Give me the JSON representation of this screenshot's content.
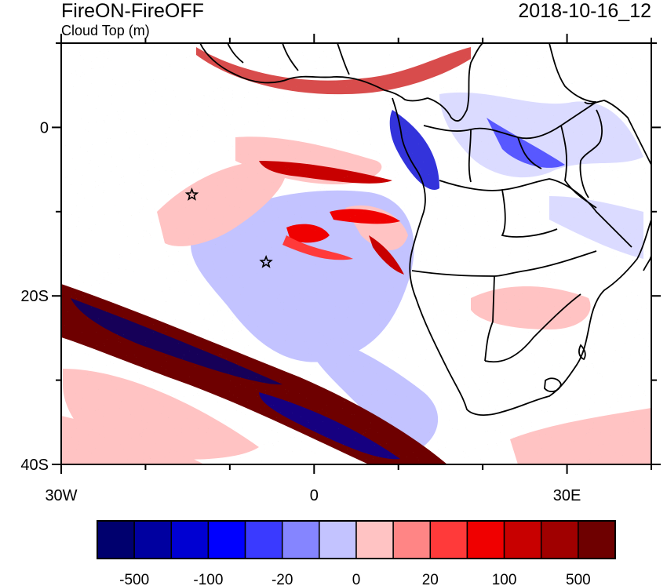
{
  "title": "FireON-FireOFF",
  "subtitle": "Cloud Top (m)",
  "datetime": "2018-10-16_12",
  "x_axis": {
    "ticks": [
      {
        "lon": -30,
        "label": "30W"
      },
      {
        "lon": 0,
        "label": "0"
      },
      {
        "lon": 30,
        "label": "30E"
      }
    ]
  },
  "y_axis": {
    "ticks": [
      {
        "lat": 0,
        "label": "0"
      },
      {
        "lat": -20,
        "label": "20S"
      },
      {
        "lat": -40,
        "label": "40S"
      }
    ]
  },
  "map_extent": {
    "lon_min": -30,
    "lon_max": 40,
    "lat_min": -40,
    "lat_max": 10
  },
  "markers": [
    {
      "name": "star",
      "lon": -14.5,
      "lat": -8
    },
    {
      "name": "star",
      "lon": -5.7,
      "lat": -16
    }
  ],
  "colorbar": {
    "colors": [
      "#00006e",
      "#0000a0",
      "#0000d2",
      "#0000ff",
      "#3a3aff",
      "#8585ff",
      "#c3c3ff",
      "#ffc3c3",
      "#ff8585",
      "#ff3a3a",
      "#f00000",
      "#c80000",
      "#a00000",
      "#6e0000"
    ],
    "labels": [
      {
        "value": "-500",
        "boundary": 1
      },
      {
        "value": "-100",
        "boundary": 3
      },
      {
        "value": "-20",
        "boundary": 5
      },
      {
        "value": "0",
        "boundary": 7
      },
      {
        "value": "20",
        "boundary": 9
      },
      {
        "value": "100",
        "boundary": 11
      },
      {
        "value": "500",
        "boundary": 13
      }
    ]
  }
}
